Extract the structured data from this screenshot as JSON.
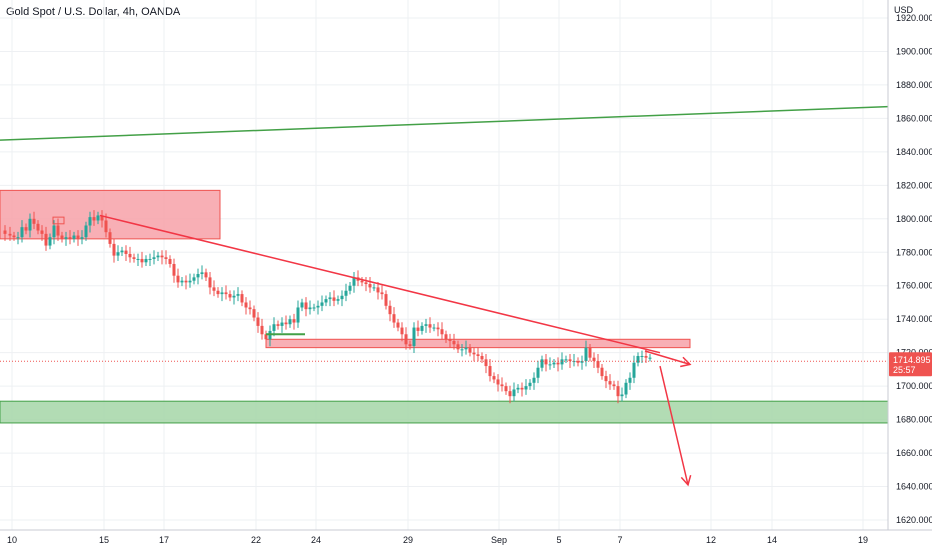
{
  "header": {
    "title": "Gold Spot / U.S. Dollar, 4h, OANDA"
  },
  "colors": {
    "up": "#26a69a",
    "down": "#ef5350",
    "grid": "#eef0f3",
    "resistance_zone": "#f7a1a8",
    "support_zone": "#a5d6a7",
    "trend_green": "#43a047",
    "trend_red": "#f23645",
    "price_tag": "#ef5350"
  },
  "chart_data": {
    "type": "candlestick",
    "symbol": "Gold Spot / U.S. Dollar",
    "timeframe": "4h",
    "source": "OANDA",
    "currency_label": "USD",
    "ylim": [
      1610,
      1930
    ],
    "y_ticks": [
      1620,
      1640,
      1660,
      1680,
      1700,
      1720,
      1740,
      1760,
      1780,
      1800,
      1820,
      1840,
      1860,
      1880,
      1900,
      1920
    ],
    "y_tick_labels": [
      "1620.000",
      "1640.000",
      "1660.000",
      "1680.000",
      "1700.000",
      "1720.000",
      "1740.000",
      "1760.000",
      "1780.000",
      "1800.000",
      "1820.000",
      "1840.000",
      "1860.000",
      "1880.000",
      "1900.000",
      "1920.000"
    ],
    "x_ticks": [
      "10",
      "15",
      "17",
      "22",
      "24",
      "29",
      "Sep",
      "5",
      "7",
      "12",
      "14",
      "19"
    ],
    "current_price": 1714.895,
    "current_price_label": "1714.895",
    "countdown_label": "25:57",
    "close_path": [
      [
        0,
        1793
      ],
      [
        5,
        1791
      ],
      [
        10,
        1790
      ],
      [
        14,
        1789
      ],
      [
        18,
        1789
      ],
      [
        22,
        1795
      ],
      [
        26,
        1793
      ],
      [
        30,
        1800
      ],
      [
        34,
        1797
      ],
      [
        38,
        1793
      ],
      [
        42,
        1791
      ],
      [
        46,
        1784
      ],
      [
        50,
        1789
      ],
      [
        54,
        1796
      ],
      [
        58,
        1790
      ],
      [
        62,
        1788
      ],
      [
        66,
        1789
      ],
      [
        70,
        1788
      ],
      [
        74,
        1790
      ],
      [
        78,
        1788
      ],
      [
        82,
        1789
      ],
      [
        86,
        1796
      ],
      [
        90,
        1801
      ],
      [
        94,
        1799
      ],
      [
        98,
        1802
      ],
      [
        102,
        1799
      ],
      [
        106,
        1792
      ],
      [
        110,
        1785
      ],
      [
        114,
        1778
      ],
      [
        118,
        1780
      ],
      [
        122,
        1781
      ],
      [
        126,
        1779
      ],
      [
        130,
        1777
      ],
      [
        134,
        1776
      ],
      [
        138,
        1776
      ],
      [
        142,
        1774
      ],
      [
        146,
        1776
      ],
      [
        150,
        1776
      ],
      [
        154,
        1777
      ],
      [
        158,
        1778
      ],
      [
        162,
        1777
      ],
      [
        166,
        1776
      ],
      [
        170,
        1773
      ],
      [
        174,
        1766
      ],
      [
        178,
        1762
      ],
      [
        182,
        1763
      ],
      [
        186,
        1762
      ],
      [
        190,
        1763
      ],
      [
        194,
        1765
      ],
      [
        198,
        1767
      ],
      [
        202,
        1768
      ],
      [
        206,
        1765
      ],
      [
        210,
        1759
      ],
      [
        214,
        1757
      ],
      [
        218,
        1755
      ],
      [
        222,
        1756
      ],
      [
        226,
        1755
      ],
      [
        230,
        1753
      ],
      [
        234,
        1754
      ],
      [
        238,
        1755
      ],
      [
        242,
        1750
      ],
      [
        246,
        1747
      ],
      [
        250,
        1746
      ],
      [
        254,
        1741
      ],
      [
        258,
        1736
      ],
      [
        262,
        1731
      ],
      [
        266,
        1728
      ],
      [
        270,
        1733
      ],
      [
        274,
        1737
      ],
      [
        278,
        1736
      ],
      [
        282,
        1738
      ],
      [
        286,
        1737
      ],
      [
        290,
        1740
      ],
      [
        294,
        1738
      ],
      [
        298,
        1747
      ],
      [
        302,
        1750
      ],
      [
        306,
        1746
      ],
      [
        310,
        1747
      ],
      [
        314,
        1747
      ],
      [
        318,
        1748
      ],
      [
        322,
        1750
      ],
      [
        326,
        1752
      ],
      [
        330,
        1753
      ],
      [
        334,
        1751
      ],
      [
        338,
        1752
      ],
      [
        342,
        1754
      ],
      [
        346,
        1757
      ],
      [
        350,
        1760
      ],
      [
        354,
        1765
      ],
      [
        358,
        1763
      ],
      [
        362,
        1762
      ],
      [
        366,
        1761
      ],
      [
        370,
        1759
      ],
      [
        374,
        1759
      ],
      [
        378,
        1756
      ],
      [
        382,
        1755
      ],
      [
        386,
        1748
      ],
      [
        390,
        1743
      ],
      [
        394,
        1738
      ],
      [
        398,
        1735
      ],
      [
        402,
        1731
      ],
      [
        406,
        1725
      ],
      [
        410,
        1724
      ],
      [
        414,
        1735
      ],
      [
        418,
        1733
      ],
      [
        422,
        1736
      ],
      [
        426,
        1737
      ],
      [
        430,
        1735
      ],
      [
        434,
        1735
      ],
      [
        438,
        1734
      ],
      [
        442,
        1731
      ],
      [
        446,
        1728
      ],
      [
        450,
        1727
      ],
      [
        454,
        1725
      ],
      [
        458,
        1722
      ],
      [
        462,
        1722
      ],
      [
        466,
        1723
      ],
      [
        470,
        1720
      ],
      [
        474,
        1719
      ],
      [
        478,
        1718
      ],
      [
        482,
        1716
      ],
      [
        486,
        1712
      ],
      [
        490,
        1706
      ],
      [
        494,
        1704
      ],
      [
        498,
        1701
      ],
      [
        502,
        1700
      ],
      [
        506,
        1697
      ],
      [
        510,
        1694
      ],
      [
        514,
        1698
      ],
      [
        518,
        1699
      ],
      [
        522,
        1698
      ],
      [
        526,
        1700
      ],
      [
        530,
        1702
      ],
      [
        534,
        1705
      ],
      [
        538,
        1711
      ],
      [
        542,
        1716
      ],
      [
        546,
        1713
      ],
      [
        550,
        1713
      ],
      [
        554,
        1714
      ],
      [
        558,
        1713
      ],
      [
        562,
        1716
      ],
      [
        566,
        1716
      ],
      [
        570,
        1715
      ],
      [
        574,
        1715
      ],
      [
        578,
        1714
      ],
      [
        582,
        1715
      ],
      [
        586,
        1723
      ],
      [
        590,
        1717
      ],
      [
        594,
        1715
      ],
      [
        598,
        1711
      ],
      [
        602,
        1706
      ],
      [
        606,
        1703
      ],
      [
        610,
        1701
      ],
      [
        614,
        1700
      ],
      [
        618,
        1694
      ],
      [
        622,
        1695
      ],
      [
        626,
        1702
      ],
      [
        630,
        1705
      ],
      [
        634,
        1714
      ],
      [
        638,
        1718
      ],
      [
        642,
        1718
      ],
      [
        646,
        1717
      ],
      [
        650,
        1717
      ]
    ],
    "annotations": {
      "green_trendline": {
        "x1": 0,
        "y1": 1847,
        "x2": 888,
        "y2": 1867
      },
      "red_trendline": {
        "x1": 100,
        "y1": 1802,
        "x2": 660,
        "y2": 1720
      },
      "resistance_zone": {
        "x1": 0,
        "x2": 220,
        "y_low": 1788,
        "y_high": 1817
      },
      "pivot_zone": {
        "x1": 266,
        "x2": 690,
        "y_low": 1723,
        "y_high": 1728
      },
      "support_zone": {
        "x1": 0,
        "x2": 888,
        "y_low": 1678,
        "y_high": 1691
      },
      "arrow_right": {
        "x1": 645,
        "y1": 1721,
        "x2": 690,
        "y2": 1713
      },
      "arrow_down": {
        "x1": 660,
        "y1": 1712,
        "x2": 688,
        "y2": 1641
      },
      "small_green_line": {
        "x1": 266,
        "x2": 305,
        "y": 1731
      },
      "small_red_box": {
        "x1": 53,
        "x2": 64,
        "y_low": 1797,
        "y_high": 1801
      }
    }
  }
}
